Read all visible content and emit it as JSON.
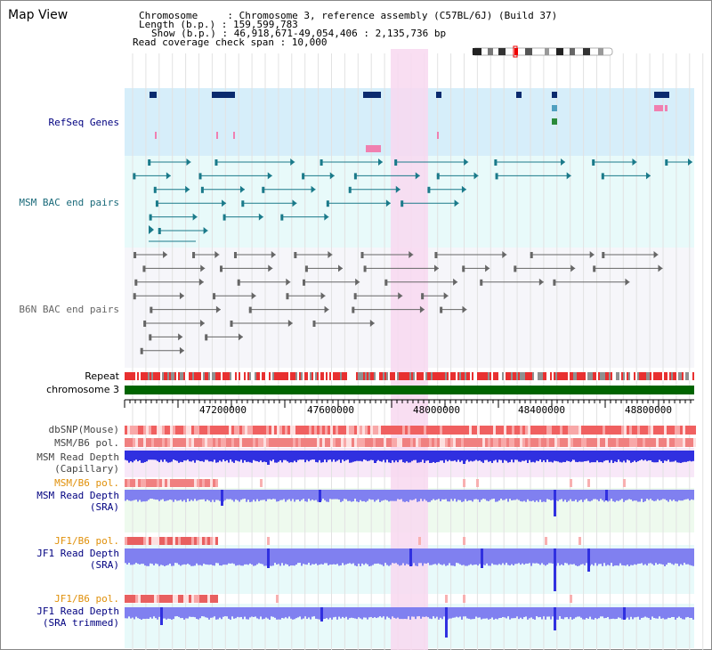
{
  "title": "Map View",
  "header": {
    "chromosome_line": "Chromosome     : Chromosome 3, reference assembly (C57BL/6J) (Build 37)",
    "length_line": "Length (b.p.) : 159,599,783",
    "show_line": "Show (b.p.) : 46,918,671-49,054,406 : 2,135,736 bp",
    "coverage_line": "Read coverage check span : 10,000"
  },
  "tracks": {
    "refseq": "RefSeq Genes",
    "msm_bac": "MSM BAC end pairs",
    "b6n_bac": "B6N BAC end pairs",
    "repeat": "Repeat",
    "chromosome": "chromosome 3",
    "dbsnp": "dbSNP(Mouse)",
    "msm_pol": "MSM/B6 pol.",
    "msm_depth_cap": "MSM Read Depth\n(Capillary)",
    "msm_pol_sra": "MSM/B6 pol.",
    "msm_depth_sra": "MSM Read Depth\n(SRA)",
    "jf1_pol": "JF1/B6 pol.",
    "jf1_depth_sra": "JF1 Read Depth\n(SRA)",
    "jf1_pol_trim": "JF1/B6 pol.",
    "jf1_depth_trim": "JF1 Read Depth\n(SRA trimmed)"
  },
  "ruler": {
    "ticks": [
      "47200000",
      "47600000",
      "48000000",
      "48400000",
      "48800000"
    ]
  },
  "colors": {
    "refseq_bg": "#d6eefa",
    "bac_bg": "#e8fafa",
    "highlight": "#f8d8f0",
    "gene_dark": "#0a2a6e",
    "msm_feature": "#1a7a8a",
    "b6n_feature": "#666666",
    "chromosome_bar": "#006400",
    "repeat_red": "#e83030",
    "depth_blue": "#3030e0",
    "depth_light": "#8080f0",
    "label_navy": "#000080",
    "label_teal": "#1a6a7a",
    "label_orange": "#e0900a",
    "label_gray": "#444444"
  }
}
